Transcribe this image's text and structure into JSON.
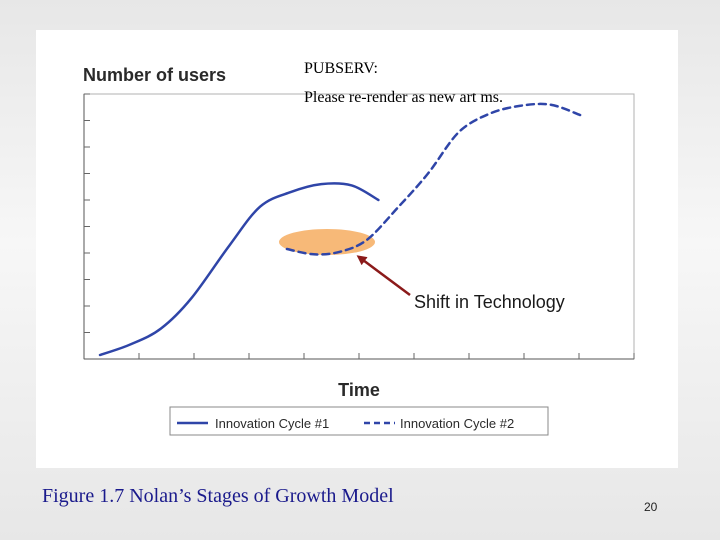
{
  "slide": {
    "caption": "Figure 1.7 Nolan’s Stages of Growth Model",
    "page_number": "20"
  },
  "notes": {
    "line1": "PUBSERV:",
    "line2": "Please re-render as new art ms."
  },
  "colors": {
    "series": "#2f45a8",
    "ellipse": "#f7b978",
    "arrow": "#8b1a1a",
    "axis": "#555555"
  },
  "chart_data": {
    "type": "line",
    "ylabel": "Number of users",
    "xlabel": "Time",
    "xlim": [
      0,
      14
    ],
    "ylim": [
      0,
      10
    ],
    "grid": false,
    "legend_placement": "bottom",
    "series": [
      {
        "name": "Innovation Cycle #1",
        "style": "solid",
        "x": [
          0,
          0.8,
          1.6,
          2.4,
          3.4,
          4.2,
          5.0,
          5.8,
          6.6,
          7.3
        ],
        "y": [
          0.15,
          0.55,
          1.15,
          2.3,
          4.3,
          5.75,
          6.3,
          6.6,
          6.55,
          6.0
        ]
      },
      {
        "name": "Innovation Cycle #2",
        "style": "dashed",
        "x": [
          4.9,
          5.6,
          6.3,
          7.0,
          7.8,
          8.6,
          9.4,
          10.2,
          11.0,
          11.8,
          12.6
        ],
        "y": [
          4.15,
          3.95,
          4.05,
          4.5,
          5.7,
          7.0,
          8.55,
          9.25,
          9.55,
          9.6,
          9.2
        ]
      }
    ],
    "annotations": [
      {
        "text": "Shift in Technology",
        "type": "arrow",
        "target": "ellipse"
      }
    ]
  }
}
